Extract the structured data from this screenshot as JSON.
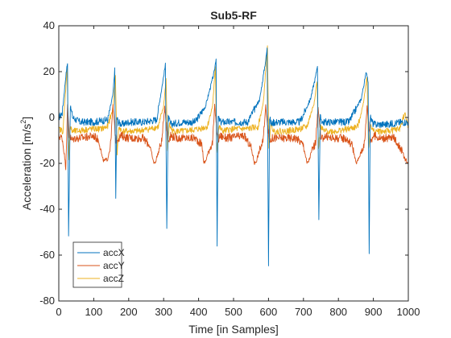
{
  "chart_data": {
    "type": "line",
    "title": "Sub5-RF",
    "xlabel": "Time [in Samples]",
    "ylabel_main": "Acceleration [m/s",
    "ylabel_sup": "2",
    "ylabel_end": "]",
    "xlim": [
      0,
      1000
    ],
    "ylim": [
      -80,
      40
    ],
    "xticks": [
      0,
      100,
      200,
      300,
      400,
      500,
      600,
      700,
      800,
      900,
      1000
    ],
    "yticks": [
      -80,
      -60,
      -40,
      -20,
      0,
      20,
      40
    ],
    "grid": false,
    "legend_position": "bottom-left",
    "series": [
      {
        "name": "accX",
        "color": "#0072bd",
        "baseline": -2,
        "noise": 1.6,
        "x": [
          0,
          10,
          20,
          25,
          28,
          33,
          40,
          60,
          100,
          140,
          155,
          160,
          163,
          166,
          170,
          180,
          200,
          240,
          280,
          300,
          305,
          309,
          313,
          320,
          350,
          390,
          420,
          445,
          450,
          453,
          456,
          462,
          470,
          500,
          540,
          575,
          592,
          596,
          600,
          603,
          608,
          615,
          640,
          690,
          720,
          735,
          740,
          744,
          748,
          755,
          780,
          830,
          865,
          880,
          885,
          888,
          891,
          900,
          940,
          980,
          1000
        ],
        "y": [
          0,
          2,
          18,
          24,
          -52,
          5,
          0,
          -2,
          -2,
          -1,
          10,
          21,
          -35,
          0,
          -2,
          -3,
          -2,
          -2,
          -1,
          18,
          23,
          -48,
          0,
          -3,
          -2,
          -2,
          5,
          20,
          26,
          -56,
          0,
          -2,
          -2,
          -2,
          -2,
          8,
          25,
          30,
          -64,
          0,
          -3,
          -2,
          -2,
          -2,
          8,
          18,
          23,
          -44,
          0,
          -2,
          -2,
          -2,
          8,
          20,
          16,
          -60,
          0,
          -3,
          -3,
          -2,
          -2
        ]
      },
      {
        "name": "accY",
        "color": "#d95319",
        "baseline": -9,
        "noise": 1.8,
        "x": [
          0,
          10,
          15,
          20,
          25,
          30,
          38,
          45,
          60,
          100,
          115,
          125,
          130,
          140,
          148,
          155,
          163,
          170,
          180,
          200,
          240,
          260,
          270,
          275,
          285,
          295,
          303,
          312,
          320,
          340,
          390,
          410,
          415,
          420,
          430,
          440,
          446,
          455,
          462,
          480,
          530,
          550,
          560,
          565,
          575,
          585,
          592,
          602,
          612,
          630,
          680,
          700,
          710,
          715,
          725,
          735,
          742,
          750,
          760,
          780,
          820,
          840,
          850,
          855,
          865,
          875,
          882,
          892,
          900,
          920,
          960,
          980,
          990,
          1000
        ],
        "y": [
          -8,
          -9,
          -15,
          -22,
          5,
          -8,
          -10,
          -9,
          -9,
          -8,
          -10,
          -18,
          -19,
          -18,
          -12,
          5,
          -10,
          -9,
          -8,
          -9,
          -9,
          -12,
          -19,
          -20,
          -15,
          -10,
          5,
          -10,
          -8,
          -9,
          -9,
          -12,
          -20,
          -19,
          -14,
          -11,
          5,
          -10,
          -8,
          -9,
          -8,
          -13,
          -20,
          -19,
          -14,
          -10,
          5,
          -10,
          -9,
          -9,
          -9,
          -12,
          -20,
          -19,
          -14,
          -11,
          5,
          -10,
          -8,
          -9,
          -9,
          -12,
          -20,
          -19,
          -15,
          -11,
          5,
          -10,
          -8,
          -9,
          -9,
          -14,
          -18,
          -20
        ]
      },
      {
        "name": "accZ",
        "color": "#edb120",
        "baseline": -5,
        "noise": 1.4,
        "x": [
          0,
          12,
          18,
          24,
          28,
          32,
          38,
          50,
          90,
          120,
          140,
          155,
          162,
          167,
          172,
          180,
          220,
          260,
          285,
          300,
          307,
          311,
          316,
          325,
          360,
          400,
          425,
          440,
          448,
          452,
          458,
          468,
          500,
          540,
          570,
          585,
          597,
          601,
          606,
          615,
          650,
          690,
          710,
          730,
          739,
          743,
          748,
          758,
          790,
          830,
          855,
          870,
          882,
          886,
          892,
          900,
          940,
          975,
          990,
          1000
        ],
        "y": [
          -5,
          -6,
          8,
          22,
          -18,
          -4,
          -6,
          -6,
          -5,
          -5,
          -4,
          4,
          18,
          -16,
          -4,
          -6,
          -6,
          -5,
          -4,
          5,
          17,
          -15,
          -3,
          -6,
          -6,
          -5,
          -4,
          5,
          22,
          -15,
          -4,
          -6,
          -5,
          -5,
          -4,
          6,
          31,
          -14,
          -3,
          -6,
          -6,
          -5,
          -4,
          6,
          16,
          -14,
          -4,
          -6,
          -6,
          -5,
          -4,
          5,
          18,
          -14,
          -3,
          -6,
          -6,
          -5,
          2,
          -4
        ]
      }
    ]
  }
}
